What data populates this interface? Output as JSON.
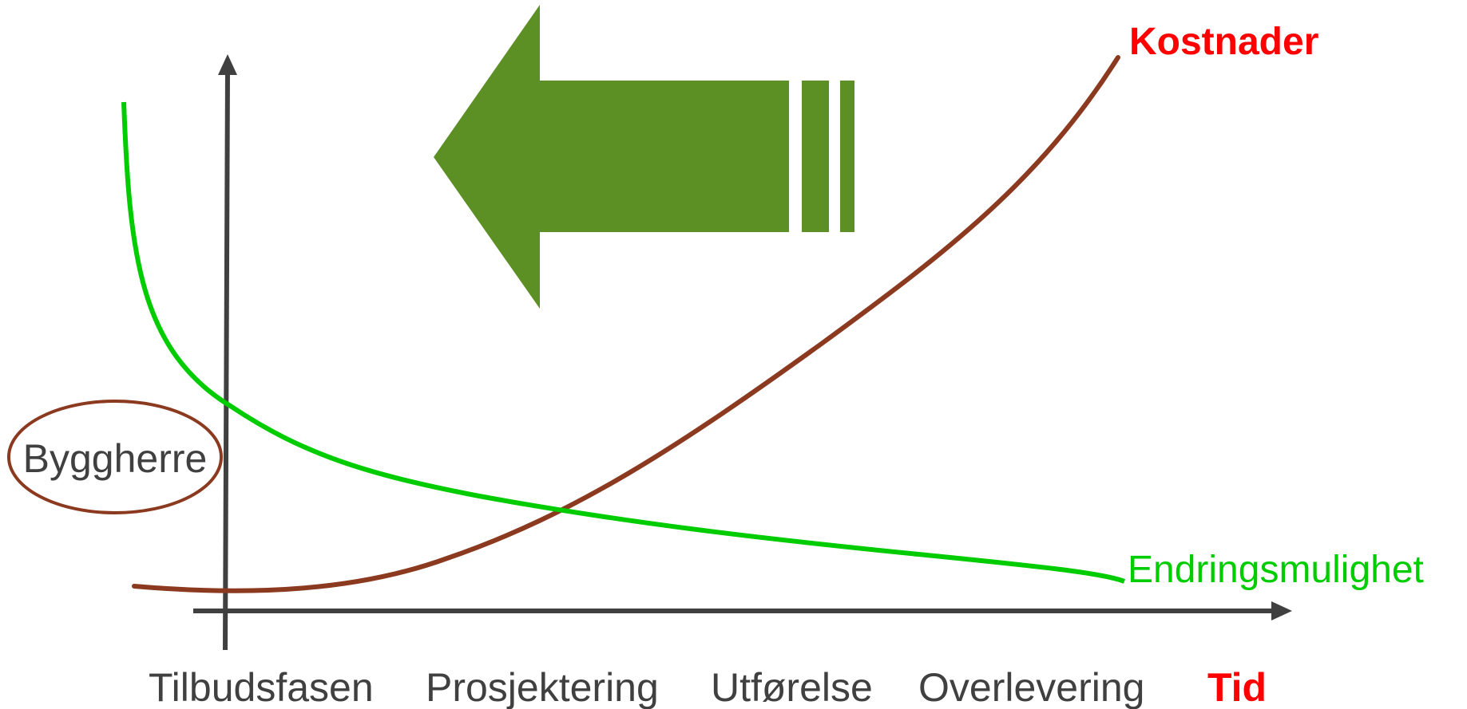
{
  "diagram": {
    "series": {
      "costs": {
        "label": "Kostnader",
        "color": "#8b3a1f",
        "label_color": "#ff0000"
      },
      "change": {
        "label": "Endringsmulighet",
        "color": "#00cc00",
        "label_color": "#00cc00"
      }
    },
    "x_axis": {
      "end_label": "Tid",
      "end_label_color": "#ff0000",
      "phases": [
        "Tilbudsfasen",
        "Prosjektering",
        "Utførelse",
        "Overlevering"
      ]
    },
    "actor": {
      "label": "Byggherre",
      "outline_color": "#8b3a1f"
    },
    "arrow": {
      "direction": "left",
      "color": "#5c8f24"
    },
    "axis_color": "#404040",
    "text_color": "#404040"
  }
}
